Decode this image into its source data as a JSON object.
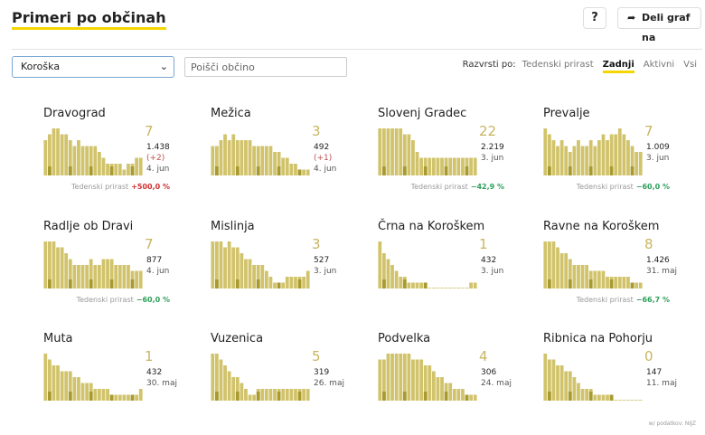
{
  "header": {
    "title": "Primeri po občinah",
    "help_label": "?",
    "share_label": "Deli graf na"
  },
  "controls": {
    "region_selected": "Koroška",
    "search_placeholder": "Poišči občino",
    "sort_label": "Razvrsti po:",
    "sort_options": [
      "Tedenski prirast",
      "Zadnji",
      "Aktivni",
      "Vsi"
    ],
    "sort_active": "Zadnji"
  },
  "colors": {
    "bar": "#d1c36b",
    "bar_dark": "#a89a2f",
    "accent": "#f5d600",
    "growth_negative": "#2ea05a",
    "growth_positive": "#d03030"
  },
  "growth_label": "Tedenski prirast",
  "municipalities": [
    {
      "name": "Dravograd",
      "latest": "7",
      "total": "1.438",
      "diff": "(+2)",
      "date": "4. jun",
      "growth": "+500,0 %",
      "growth_sign": "pos",
      "bars": [
        6,
        7,
        8,
        8,
        7,
        7,
        6,
        5,
        6,
        5,
        5,
        5,
        5,
        4,
        3,
        2,
        2,
        2,
        2,
        1,
        2,
        2,
        3,
        3
      ]
    },
    {
      "name": "Mežica",
      "latest": "3",
      "total": "492",
      "diff": "(+1)",
      "date": "4. jun",
      "growth": "",
      "growth_sign": "",
      "bars": [
        5,
        5,
        6,
        7,
        6,
        7,
        6,
        6,
        6,
        6,
        5,
        5,
        5,
        5,
        5,
        4,
        4,
        3,
        3,
        2,
        2,
        1,
        1,
        1
      ]
    },
    {
      "name": "Slovenj Gradec",
      "latest": "22",
      "total": "2.219",
      "diff": "",
      "date": "3. jun",
      "growth": "−42,9 %",
      "growth_sign": "neg",
      "bars": [
        8,
        8,
        8,
        8,
        8,
        8,
        7,
        7,
        6,
        4,
        3,
        3,
        3,
        3,
        3,
        3,
        3,
        3,
        3,
        3,
        3,
        3,
        3,
        3
      ]
    },
    {
      "name": "Prevalje",
      "latest": "7",
      "total": "1.009",
      "diff": "",
      "date": "3. jun",
      "growth": "−60,0 %",
      "growth_sign": "neg",
      "bars": [
        8,
        7,
        6,
        5,
        6,
        5,
        4,
        5,
        6,
        5,
        5,
        6,
        5,
        6,
        7,
        6,
        7,
        7,
        8,
        7,
        6,
        5,
        4,
        4
      ]
    },
    {
      "name": "Radlje ob Dravi",
      "latest": "7",
      "total": "877",
      "diff": "",
      "date": "4. jun",
      "growth": "−60,0 %",
      "growth_sign": "neg",
      "bars": [
        8,
        8,
        8,
        7,
        7,
        6,
        5,
        4,
        4,
        4,
        4,
        5,
        4,
        4,
        5,
        5,
        5,
        4,
        4,
        4,
        4,
        3,
        3,
        3
      ]
    },
    {
      "name": "Mislinja",
      "latest": "3",
      "total": "527",
      "diff": "",
      "date": "3. jun",
      "growth": "",
      "growth_sign": "",
      "bars": [
        8,
        8,
        8,
        7,
        8,
        7,
        7,
        6,
        5,
        5,
        4,
        4,
        4,
        3,
        2,
        1,
        1,
        1,
        2,
        2,
        2,
        2,
        2,
        3
      ]
    },
    {
      "name": "Črna na Koroškem",
      "latest": "1",
      "total": "432",
      "diff": "",
      "date": "3. jun",
      "growth": "",
      "growth_sign": "",
      "bars": [
        8,
        6,
        5,
        4,
        3,
        2,
        2,
        1,
        1,
        1,
        1,
        1,
        0,
        0,
        0,
        0,
        0,
        0,
        0,
        0,
        0,
        0,
        1,
        1
      ]
    },
    {
      "name": "Ravne na Koroškem",
      "latest": "8",
      "total": "1.426",
      "diff": "",
      "date": "31. maj",
      "growth": "−66,7 %",
      "growth_sign": "neg",
      "bars": [
        8,
        8,
        8,
        7,
        6,
        6,
        5,
        4,
        4,
        4,
        4,
        3,
        3,
        3,
        3,
        2,
        2,
        2,
        2,
        2,
        2,
        1,
        1,
        1
      ]
    },
    {
      "name": "Muta",
      "latest": "1",
      "total": "432",
      "diff": "",
      "date": "30. maj",
      "growth": "",
      "growth_sign": "",
      "bars": [
        8,
        7,
        6,
        6,
        5,
        5,
        5,
        4,
        4,
        3,
        3,
        3,
        2,
        2,
        2,
        2,
        1,
        1,
        1,
        1,
        1,
        1,
        1,
        2
      ]
    },
    {
      "name": "Vuzenica",
      "latest": "5",
      "total": "319",
      "diff": "",
      "date": "26. maj",
      "growth": "",
      "growth_sign": "",
      "bars": [
        8,
        8,
        7,
        6,
        5,
        4,
        4,
        3,
        2,
        1,
        1,
        2,
        2,
        2,
        2,
        2,
        2,
        2,
        2,
        2,
        2,
        2,
        2,
        2
      ]
    },
    {
      "name": "Podvelka",
      "latest": "4",
      "total": "306",
      "diff": "",
      "date": "24. maj",
      "growth": "",
      "growth_sign": "",
      "bars": [
        7,
        7,
        8,
        8,
        8,
        8,
        8,
        8,
        7,
        7,
        7,
        6,
        6,
        5,
        4,
        4,
        3,
        3,
        2,
        2,
        2,
        1,
        1,
        1
      ]
    },
    {
      "name": "Ribnica na Pohorju",
      "latest": "0",
      "total": "147",
      "diff": "",
      "date": "11. maj",
      "growth": "",
      "growth_sign": "",
      "bars": [
        8,
        7,
        7,
        6,
        6,
        5,
        5,
        4,
        3,
        2,
        2,
        2,
        1,
        1,
        1,
        1,
        1,
        0,
        0,
        0,
        0,
        0,
        0,
        0
      ]
    }
  ],
  "footer": "w/ podatkov: NIJZ"
}
